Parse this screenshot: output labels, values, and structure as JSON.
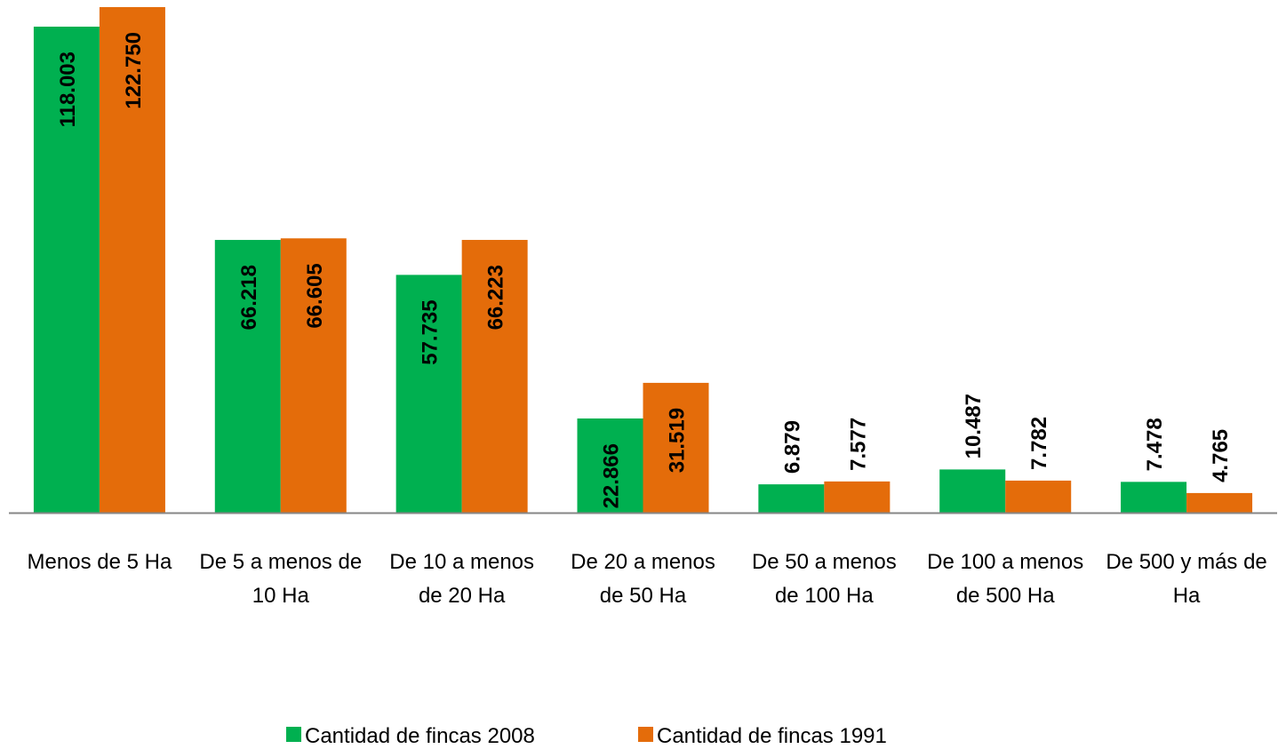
{
  "chart_data": {
    "type": "bar",
    "categories": [
      "Menos de 5 Ha",
      "De 5 a menos de 10 Ha",
      "De 10 a menos de 20 Ha",
      "De 20 a menos de 50 Ha",
      "De 50 a menos de 100 Ha",
      "De 100 a menos de 500 Ha",
      "De 500 y más de Ha"
    ],
    "series": [
      {
        "name": "Cantidad de fincas 2008",
        "color": "#00b050",
        "values": [
          118003,
          66218,
          57735,
          22866,
          6879,
          10487,
          7478
        ],
        "value_labels": [
          "118.003",
          "66.218",
          "57.735",
          "22.866",
          "6.879",
          "10.487",
          "7.478"
        ]
      },
      {
        "name": "Cantidad de fincas 1991",
        "color": "#e46c0a",
        "values": [
          122750,
          66605,
          66223,
          31519,
          7577,
          7782,
          4765
        ],
        "value_labels": [
          "122.750",
          "66.605",
          "66.223",
          "31.519",
          "7.577",
          "7.782",
          "4.765"
        ]
      }
    ],
    "legend": "bottom"
  }
}
